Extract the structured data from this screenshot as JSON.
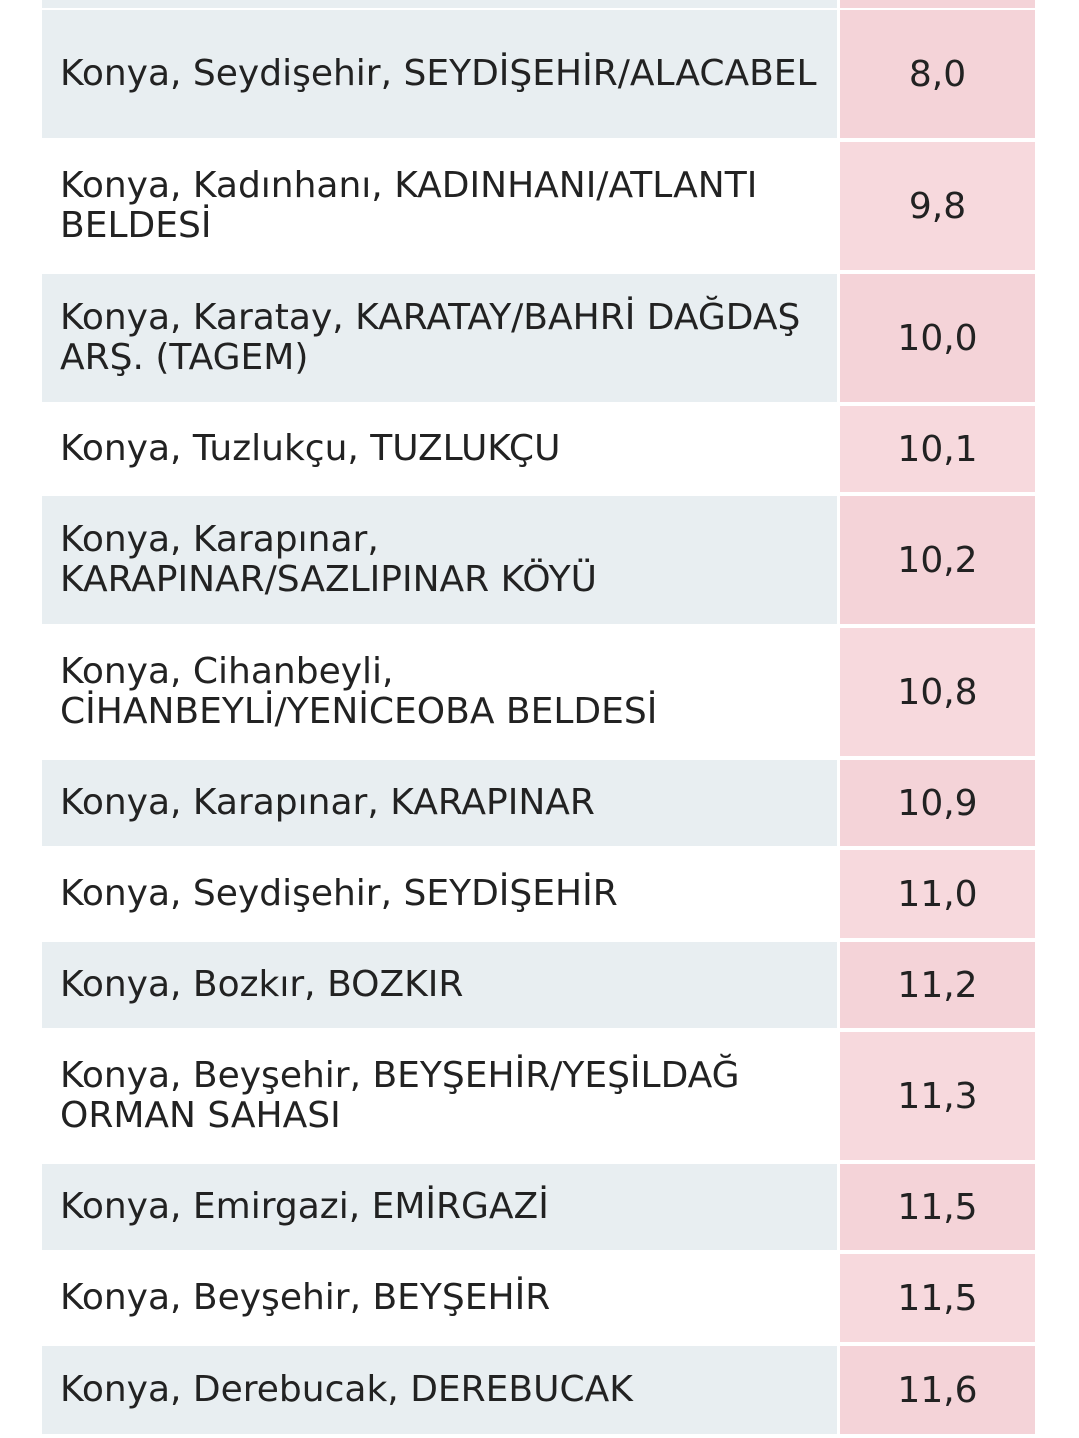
{
  "table": {
    "rows": [
      [
        "Konya, Seydişehir, SEYDİŞEHİR/ALACABEL",
        "8,0"
      ],
      [
        "Konya, Kadınhanı, KADINHANI/ATLANTI BELDESİ",
        "9,8"
      ],
      [
        "Konya, Karatay, KARATAY/BAHRİ DAĞDAŞ ARŞ. (TAGEM)",
        "10,0"
      ],
      [
        "Konya, Tuzlukçu, TUZLUKÇU",
        "10,1"
      ],
      [
        "Konya, Karapınar, KARAPINAR/SAZLIPINAR KÖYÜ",
        "10,2"
      ],
      [
        "Konya, Cihanbeyli, CİHANBEYLİ/YENİCEOBA BELDESİ",
        "10,8"
      ],
      [
        "Konya, Karapınar, KARAPINAR",
        "10,9"
      ],
      [
        "Konya, Seydişehir, SEYDİŞEHİR",
        "11,0"
      ],
      [
        "Konya, Bozkır, BOZKIR",
        "11,2"
      ],
      [
        "Konya, Beyşehir, BEYŞEHİR/YEŞİLDAĞ ORMAN SAHASI",
        "11,3"
      ],
      [
        "Konya, Emirgazi, EMİRGAZİ",
        "11,5"
      ],
      [
        "Konya, Beyşehir, BEYŞEHİR",
        "11,5"
      ],
      [
        "Konya, Derebucak, DEREBUCAK",
        "11,6"
      ]
    ]
  }
}
